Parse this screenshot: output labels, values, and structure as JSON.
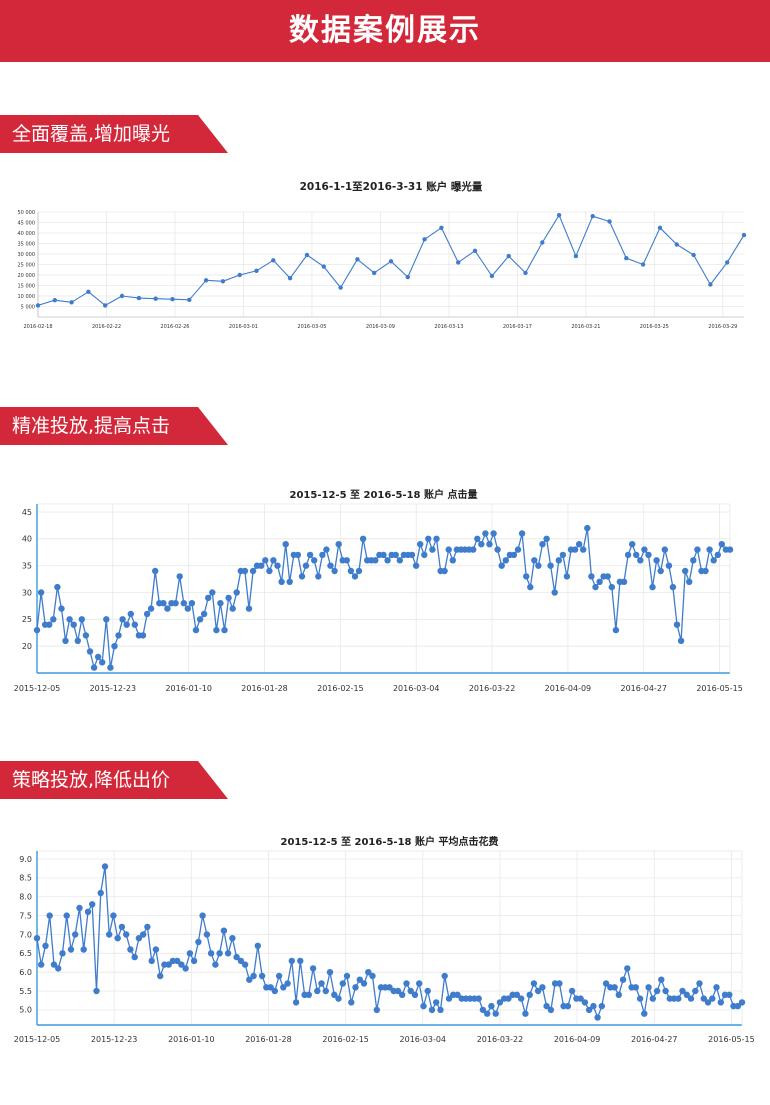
{
  "header": {
    "title": "数据案例展示"
  },
  "sections": [
    {
      "label": "全面覆盖,增加曝光"
    },
    {
      "label": "精准投放,提高点击"
    },
    {
      "label": "策略投放,降低出价"
    }
  ],
  "colors": {
    "accent": "#d3283a",
    "series": "#3f7ccc",
    "axis": "#3a9ad9",
    "grid": "#e8e8e8"
  },
  "chart_data": [
    {
      "type": "line",
      "title": "2016-1-1至2016-3-31 账户 曝光量",
      "xlabel": "",
      "ylabel": "",
      "x_ticks": [
        "2016-02-18",
        "2016-02-22",
        "2016-02-26",
        "2016-03-01",
        "2016-03-05",
        "2016-03-09",
        "2016-03-13",
        "2016-03-17",
        "2016-03-21",
        "2016-03-25",
        "2016-03-29"
      ],
      "y_ticks": [
        "5 000",
        "10 000",
        "15 000",
        "20 000",
        "25 000",
        "30 000",
        "35 000",
        "40 000",
        "45 000",
        "50 000"
      ],
      "ylim": [
        0,
        50000
      ],
      "grid": true,
      "values": [
        5500,
        8000,
        7000,
        12000,
        5500,
        10000,
        9000,
        8700,
        8500,
        8200,
        17500,
        17000,
        20000,
        22000,
        27000,
        18500,
        29500,
        24000,
        14000,
        27500,
        21000,
        26500,
        19000,
        37000,
        42500,
        26000,
        31500,
        19500,
        29000,
        21000,
        35500,
        48500,
        29000,
        48000,
        45500,
        28000,
        25000,
        42500,
        34500,
        29500,
        15500,
        26000,
        39000
      ]
    },
    {
      "type": "line",
      "title": "2015-12-5 至 2016-5-18 账户 点击量",
      "xlabel": "",
      "ylabel": "",
      "x_ticks": [
        "2015-12-05",
        "2015-12-23",
        "2016-01-10",
        "2016-01-28",
        "2016-02-15",
        "2016-03-04",
        "2016-03-22",
        "2016-04-09",
        "2016-04-27",
        "2016-05-15"
      ],
      "y_ticks": [
        "20",
        "25",
        "30",
        "35",
        "40",
        "45"
      ],
      "ylim": [
        15,
        45
      ],
      "grid": true,
      "values": [
        23,
        30,
        24,
        24,
        25,
        31,
        27,
        21,
        25,
        24,
        21,
        25,
        22,
        19,
        16,
        18,
        17,
        25,
        16,
        20,
        22,
        25,
        24,
        26,
        24,
        22,
        22,
        26,
        27,
        34,
        28,
        28,
        27,
        28,
        28,
        33,
        28,
        27,
        28,
        23,
        25,
        26,
        29,
        30,
        23,
        28,
        23,
        29,
        27,
        30,
        34,
        34,
        27,
        34,
        35,
        35,
        36,
        34,
        36,
        35,
        32,
        39,
        32,
        37,
        37,
        33,
        35,
        37,
        36,
        33,
        37,
        38,
        35,
        34,
        39,
        36,
        36,
        34,
        33,
        34,
        40,
        36,
        36,
        36,
        37,
        37,
        36,
        37,
        37,
        36,
        37,
        37,
        37,
        35,
        39,
        37,
        40,
        38,
        40,
        34,
        34,
        38,
        36,
        38,
        38,
        38,
        38,
        38,
        40,
        39,
        41,
        39,
        41,
        38,
        35,
        36,
        37,
        37,
        38,
        41,
        33,
        31,
        36,
        35,
        39,
        40,
        35,
        30,
        36,
        37,
        33,
        38,
        38,
        39,
        38,
        42,
        33,
        31,
        32,
        33,
        33,
        31,
        23,
        32,
        32,
        37,
        39,
        37,
        36,
        38,
        37,
        31,
        36,
        34,
        38,
        35,
        31,
        24,
        21,
        34,
        32,
        36,
        38,
        34,
        34,
        38,
        36,
        37,
        39,
        38,
        38
      ]
    },
    {
      "type": "line",
      "title": "2015-12-5 至 2016-5-18 账户  平均点击花费",
      "xlabel": "",
      "ylabel": "",
      "x_ticks": [
        "2015-12-05",
        "2015-12-23",
        "2016-01-10",
        "2016-01-28",
        "2016-02-15",
        "2016-03-04",
        "2016-03-22",
        "2016-04-09",
        "2016-04-27",
        "2016-05-15"
      ],
      "y_ticks": [
        "5.0",
        "5.5",
        "6.0",
        "6.5",
        "7.0",
        "7.5",
        "8.0",
        "8.5",
        "9.0"
      ],
      "ylim": [
        4.6,
        9.0
      ],
      "grid": true,
      "values": [
        6.9,
        6.2,
        6.7,
        7.5,
        6.2,
        6.1,
        6.5,
        7.5,
        6.6,
        7.0,
        7.7,
        6.6,
        7.6,
        7.8,
        5.5,
        8.1,
        8.8,
        7.0,
        7.5,
        6.9,
        7.2,
        7.0,
        6.6,
        6.4,
        6.9,
        7.0,
        7.2,
        6.3,
        6.6,
        5.9,
        6.2,
        6.2,
        6.3,
        6.3,
        6.2,
        6.1,
        6.5,
        6.3,
        6.8,
        7.5,
        7.0,
        6.5,
        6.2,
        6.5,
        7.1,
        6.5,
        6.9,
        6.4,
        6.3,
        6.2,
        5.8,
        5.9,
        6.7,
        5.9,
        5.6,
        5.6,
        5.5,
        5.9,
        5.6,
        5.7,
        6.3,
        5.2,
        6.3,
        5.4,
        5.4,
        6.1,
        5.5,
        5.7,
        5.5,
        6.0,
        5.4,
        5.3,
        5.7,
        5.9,
        5.2,
        5.6,
        5.8,
        5.7,
        6.0,
        5.9,
        5.0,
        5.6,
        5.6,
        5.6,
        5.5,
        5.5,
        5.4,
        5.7,
        5.5,
        5.4,
        5.7,
        5.1,
        5.5,
        5.0,
        5.2,
        5.0,
        5.9,
        5.3,
        5.4,
        5.4,
        5.3,
        5.3,
        5.3,
        5.3,
        5.3,
        5.0,
        4.9,
        5.1,
        4.9,
        5.2,
        5.3,
        5.3,
        5.4,
        5.4,
        5.3,
        4.9,
        5.4,
        5.7,
        5.5,
        5.6,
        5.1,
        5.0,
        5.7,
        5.7,
        5.1,
        5.1,
        5.5,
        5.3,
        5.3,
        5.2,
        5.0,
        5.1,
        4.8,
        5.1,
        5.7,
        5.6,
        5.6,
        5.4,
        5.8,
        6.1,
        5.6,
        5.6,
        5.3,
        4.9,
        5.6,
        5.3,
        5.5,
        5.8,
        5.5,
        5.3,
        5.3,
        5.3,
        5.5,
        5.4,
        5.3,
        5.5,
        5.7,
        5.3,
        5.2,
        5.3,
        5.6,
        5.2,
        5.4,
        5.4,
        5.1,
        5.1,
        5.2
      ]
    }
  ]
}
